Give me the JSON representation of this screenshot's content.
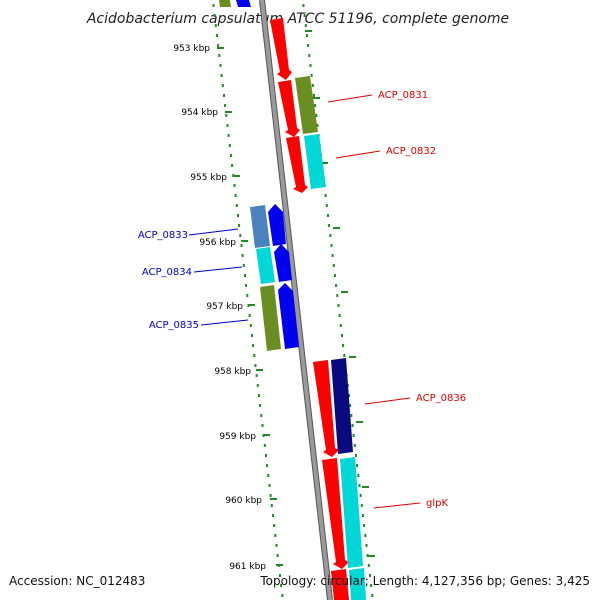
{
  "title": "Acidobacterium capsulatum ATCC 51196, complete genome",
  "footer": {
    "accession": "Accession: NC_012483",
    "summary": "Topology: circular; Length: 4,127,356 bp; Genes: 3,425"
  },
  "ticks": [
    "953 kbp",
    "954 kbp",
    "955 kbp",
    "956 kbp",
    "957 kbp",
    "958 kbp",
    "959 kbp",
    "960 kbp",
    "961 kbp"
  ],
  "gene_labels": [
    {
      "id": "ACP_0831",
      "strand": "forward",
      "color": "#e00000"
    },
    {
      "id": "ACP_0832",
      "strand": "forward",
      "color": "#e00000"
    },
    {
      "id": "ACP_0833",
      "strand": "reverse",
      "color": "#0000cc"
    },
    {
      "id": "ACP_0834",
      "strand": "reverse",
      "color": "#0000cc"
    },
    {
      "id": "ACP_0835",
      "strand": "reverse",
      "color": "#0000cc"
    },
    {
      "id": "ACP_0836",
      "strand": "forward",
      "color": "#e00000"
    },
    {
      "id": "glpK",
      "strand": "forward",
      "color": "#e00000"
    }
  ],
  "colors": {
    "backbone": "#8a8a8a",
    "tick": "#228b22",
    "red": "#ff0000",
    "blue": "#0000ee",
    "navy": "#0a0a80",
    "olive": "#6b8e23",
    "cyan": "#00d8d8",
    "steelblue": "#4a82c0"
  }
}
